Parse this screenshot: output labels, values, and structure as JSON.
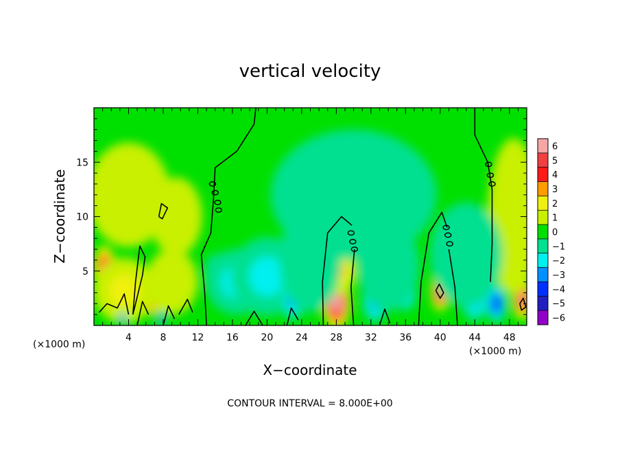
{
  "chart_data": {
    "type": "heatmap",
    "title": "vertical velocity",
    "xlabel": "X−coordinate",
    "ylabel": "Z−coordinate",
    "x_unit_left": "(×1000 m)",
    "x_unit_right": "(×1000 m)",
    "xlim": [
      0,
      50
    ],
    "ylim": [
      0,
      20
    ],
    "x_ticks": [
      4,
      8,
      12,
      16,
      20,
      24,
      28,
      32,
      36,
      40,
      44,
      48
    ],
    "x_tick_labels": [
      "4",
      "8",
      "12",
      "16",
      "20",
      "24",
      "28",
      "32",
      "36",
      "40",
      "44",
      "48"
    ],
    "y_ticks": [
      5,
      10,
      15
    ],
    "y_tick_labels": [
      "5",
      "10",
      "15"
    ],
    "colorbar": {
      "levels": [
        6,
        5,
        4,
        3,
        2,
        1,
        0,
        -1,
        -2,
        -3,
        -4,
        -5,
        -6
      ],
      "labels": [
        "6",
        "5",
        "4",
        "3",
        "2",
        "1",
        "0",
        "−1",
        "−2",
        "−3",
        "−4",
        "−5",
        "−6"
      ],
      "colors": [
        "#f5a6a6",
        "#f04040",
        "#ff1a1a",
        "#ff9d00",
        "#f0f010",
        "#c8f000",
        "#00e000",
        "#00e090",
        "#00f0f0",
        "#0090ff",
        "#0030ff",
        "#2020c0",
        "#9000c8"
      ]
    },
    "background_color": "#00e000",
    "contour_interval_text": "CONTOUR INTERVAL =  8.000E+00",
    "features": [
      {
        "x": 1.2,
        "z": 5.2,
        "sx": 1.1,
        "sz": 1.8,
        "amp": 5.5
      },
      {
        "x": 28.0,
        "z": 2.2,
        "sx": 1.4,
        "sz": 2.2,
        "amp": 7.5
      },
      {
        "x": 28.3,
        "z": 5.0,
        "sx": 1.6,
        "sz": 1.8,
        "amp": 3.0
      },
      {
        "x": 40.0,
        "z": 3.2,
        "sx": 0.9,
        "sz": 1.6,
        "amp": 7.0
      },
      {
        "x": 49.5,
        "z": 2.4,
        "sx": 1.0,
        "sz": 1.6,
        "amp": 6.0
      },
      {
        "x": 6.8,
        "z": 1.8,
        "sx": 0.6,
        "sz": 0.8,
        "amp": 4.0
      },
      {
        "x": 3.5,
        "z": 3.2,
        "sx": 3.0,
        "sz": 2.5,
        "amp": 1.5
      },
      {
        "x": 9.0,
        "z": 4.0,
        "sx": 2.5,
        "sz": 2.5,
        "amp": 1.2
      },
      {
        "x": 4.0,
        "z": 12.0,
        "sx": 4.0,
        "sz": 4.0,
        "amp": 0.7
      },
      {
        "x": 9.5,
        "z": 10.0,
        "sx": 2.5,
        "sz": 3.0,
        "amp": 0.8
      },
      {
        "x": 48.5,
        "z": 10.0,
        "sx": 2.5,
        "sz": 6.0,
        "amp": 0.9
      },
      {
        "x": 14.0,
        "z": 4.8,
        "sx": 1.0,
        "sz": 1.5,
        "amp": -3.0
      },
      {
        "x": 16.5,
        "z": 4.0,
        "sx": 3.0,
        "sz": 2.5,
        "amp": -1.6
      },
      {
        "x": 20.0,
        "z": 4.5,
        "sx": 3.5,
        "sz": 3.0,
        "amp": -1.9
      },
      {
        "x": 23.0,
        "z": 2.8,
        "sx": 1.2,
        "sz": 2.0,
        "amp": -3.5
      },
      {
        "x": 25.0,
        "z": 6.0,
        "sx": 3.0,
        "sz": 4.0,
        "amp": -1.0
      },
      {
        "x": 32.5,
        "z": 2.6,
        "sx": 1.3,
        "sz": 2.0,
        "amp": -4.0
      },
      {
        "x": 36.0,
        "z": 3.2,
        "sx": 1.1,
        "sz": 1.6,
        "amp": -3.6
      },
      {
        "x": 34.0,
        "z": 5.5,
        "sx": 3.0,
        "sz": 3.5,
        "amp": -1.4
      },
      {
        "x": 44.0,
        "z": 3.0,
        "sx": 1.5,
        "sz": 2.2,
        "amp": -3.8
      },
      {
        "x": 46.5,
        "z": 2.0,
        "sx": 1.0,
        "sz": 1.5,
        "amp": -4.5
      },
      {
        "x": 43.0,
        "z": 6.5,
        "sx": 3.5,
        "sz": 4.0,
        "amp": -1.2
      },
      {
        "x": 3.3,
        "z": 0.6,
        "sx": 0.3,
        "sz": 0.6,
        "amp": -4.0
      },
      {
        "x": 7.8,
        "z": 0.6,
        "sx": 0.4,
        "sz": 0.6,
        "amp": -4.0
      },
      {
        "x": 30.0,
        "z": 12.0,
        "sx": 8.0,
        "sz": 5.0,
        "amp": -0.6
      }
    ],
    "contours": [
      [
        [
          13.0,
          0.0
        ],
        [
          12.8,
          3.0
        ],
        [
          12.4,
          6.5
        ],
        [
          13.5,
          8.5
        ],
        [
          13.8,
          11.5
        ],
        [
          14.0,
          14.5
        ],
        [
          16.5,
          16.0
        ],
        [
          18.5,
          18.5
        ],
        [
          18.7,
          20.0
        ]
      ],
      [
        [
          26.5,
          0.0
        ],
        [
          26.4,
          4.0
        ],
        [
          27.0,
          8.5
        ],
        [
          28.6,
          10.0
        ],
        [
          29.8,
          9.2
        ]
      ],
      [
        [
          30.0,
          0.0
        ],
        [
          29.7,
          3.5
        ],
        [
          30.1,
          7.0
        ]
      ],
      [
        [
          37.5,
          0.0
        ],
        [
          37.8,
          4.0
        ],
        [
          38.7,
          8.5
        ],
        [
          40.2,
          10.4
        ],
        [
          40.8,
          9.0
        ]
      ],
      [
        [
          42.0,
          0.0
        ],
        [
          41.7,
          3.5
        ],
        [
          41.0,
          7.0
        ]
      ],
      [
        [
          44.0,
          20.0
        ],
        [
          44.0,
          17.5
        ],
        [
          45.5,
          15.0
        ],
        [
          46.0,
          12.5
        ],
        [
          46.0,
          7.5
        ],
        [
          45.8,
          4.0
        ]
      ],
      [
        [
          4.5,
          1.0
        ],
        [
          4.8,
          4.0
        ],
        [
          5.3,
          7.3
        ],
        [
          5.9,
          6.3
        ],
        [
          5.6,
          4.6
        ],
        [
          4.5,
          1.0
        ]
      ],
      [
        [
          7.5,
          10.0
        ],
        [
          7.8,
          11.2
        ],
        [
          8.5,
          10.8
        ],
        [
          7.9,
          9.8
        ],
        [
          7.5,
          10.0
        ]
      ],
      [
        [
          0.6,
          1.2
        ],
        [
          1.5,
          2.0
        ],
        [
          2.7,
          1.6
        ],
        [
          3.5,
          2.9
        ],
        [
          4.0,
          1.0
        ]
      ],
      [
        [
          5.0,
          0.0
        ],
        [
          5.6,
          2.2
        ],
        [
          6.3,
          1.0
        ]
      ],
      [
        [
          8.0,
          0.0
        ],
        [
          8.6,
          1.8
        ],
        [
          9.3,
          0.6
        ]
      ],
      [
        [
          9.8,
          1.0
        ],
        [
          10.8,
          2.4
        ],
        [
          11.4,
          1.2
        ]
      ],
      [
        [
          17.5,
          0.0
        ],
        [
          18.5,
          1.3
        ],
        [
          19.5,
          0.0
        ]
      ],
      [
        [
          22.3,
          0.0
        ],
        [
          22.8,
          1.6
        ],
        [
          23.6,
          0.5
        ]
      ],
      [
        [
          33.0,
          0.0
        ],
        [
          33.6,
          1.5
        ],
        [
          34.2,
          0.2
        ]
      ],
      [
        [
          39.5,
          3.2
        ],
        [
          39.9,
          3.8
        ],
        [
          40.4,
          3.0
        ],
        [
          40.0,
          2.5
        ],
        [
          39.5,
          3.2
        ]
      ],
      [
        [
          49.2,
          2.0
        ],
        [
          49.6,
          2.5
        ],
        [
          49.9,
          1.7
        ],
        [
          49.4,
          1.4
        ],
        [
          49.2,
          2.0
        ]
      ]
    ],
    "small_loops": [
      [
        13.7,
        13.0
      ],
      [
        14.0,
        12.2
      ],
      [
        14.3,
        11.3
      ],
      [
        14.4,
        10.6
      ],
      [
        29.7,
        8.5
      ],
      [
        29.9,
        7.7
      ],
      [
        30.1,
        7.0
      ],
      [
        40.7,
        9.0
      ],
      [
        40.9,
        8.3
      ],
      [
        41.1,
        7.5
      ],
      [
        45.6,
        14.8
      ],
      [
        45.8,
        13.8
      ],
      [
        46.0,
        13.0
      ]
    ]
  }
}
